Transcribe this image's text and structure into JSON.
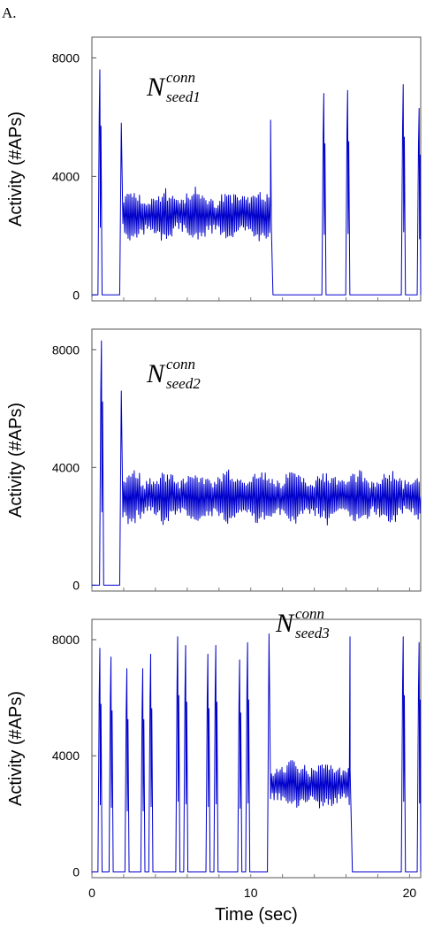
{
  "panel_label": "A.",
  "colors": {
    "trace": "#0000cc",
    "frame": "#555555"
  },
  "chart_data": [
    {
      "type": "line",
      "annotation": {
        "main": "N",
        "superscript": "conn",
        "subscript": "seed1"
      },
      "ylabel": "Activity (#APs)",
      "xlabel": "",
      "xlim": [
        0,
        20.7
      ],
      "ylim": [
        -200,
        8700
      ],
      "yticks": [
        0,
        4000,
        8000
      ],
      "xticks": [],
      "grid": false,
      "series": [
        {
          "bursts": [
            [
              0.5,
              7600
            ],
            [
              1.9,
              5800
            ],
            [
              14.6,
              6800
            ],
            [
              16.1,
              6900
            ],
            [
              19.6,
              7100
            ],
            [
              20.6,
              6300
            ]
          ],
          "sustained": {
            "start": 1.9,
            "end": 11.3,
            "mean": 2700,
            "low": 1900,
            "high": 3500,
            "final_peak": 5900
          }
        }
      ]
    },
    {
      "type": "line",
      "annotation": {
        "main": "N",
        "superscript": "conn",
        "subscript": "seed2"
      },
      "ylabel": "Activity (#APs)",
      "xlabel": "",
      "xlim": [
        0,
        20.7
      ],
      "ylim": [
        -200,
        8700
      ],
      "yticks": [
        0,
        4000,
        8000
      ],
      "xticks": [],
      "grid": false,
      "series": [
        {
          "bursts": [
            [
              0.6,
              8300
            ],
            [
              1.9,
              6600
            ]
          ],
          "sustained": {
            "start": 1.9,
            "end": 20.7,
            "mean": 3000,
            "low": 2200,
            "high": 3900,
            "final_peak": 0
          }
        }
      ]
    },
    {
      "type": "line",
      "annotation": {
        "main": "N",
        "superscript": "conn",
        "subscript": "seed3"
      },
      "ylabel": "Activity (#APs)",
      "xlabel": "Time (sec)",
      "xlim": [
        0,
        20.7
      ],
      "ylim": [
        -200,
        8700
      ],
      "yticks": [
        0,
        4000,
        8000
      ],
      "xticks": [
        0,
        10,
        20
      ],
      "grid": false,
      "series": [
        {
          "bursts": [
            [
              0.5,
              7700
            ],
            [
              1.2,
              7400
            ],
            [
              2.2,
              7000
            ],
            [
              3.2,
              7000
            ],
            [
              3.7,
              7500
            ],
            [
              5.4,
              8100
            ],
            [
              5.9,
              7800
            ],
            [
              7.3,
              7500
            ],
            [
              7.8,
              7800
            ],
            [
              9.3,
              7300
            ],
            [
              9.8,
              7900
            ],
            [
              11.2,
              8200
            ],
            [
              19.6,
              8100
            ],
            [
              20.6,
              7900
            ]
          ],
          "sustained": {
            "start": 11.2,
            "end": 16.3,
            "mean": 3000,
            "low": 2300,
            "high": 3900,
            "final_peak": 8100
          }
        }
      ]
    }
  ]
}
